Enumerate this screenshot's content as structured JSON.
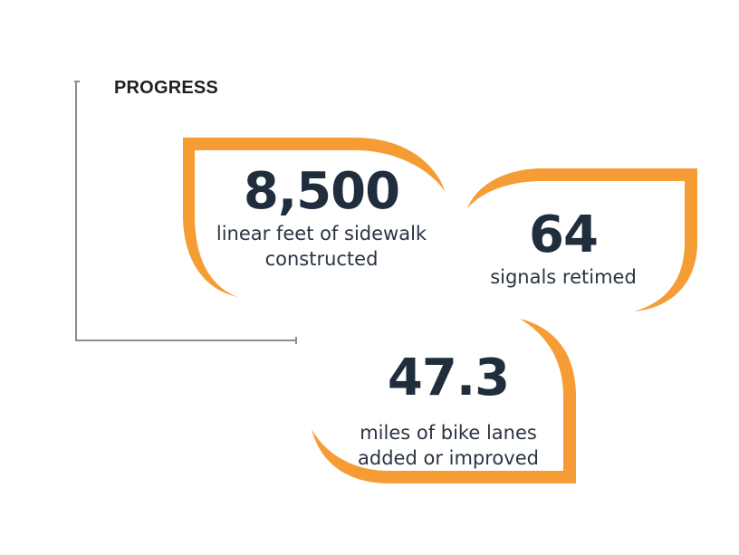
{
  "title": "PROGRESS",
  "colors": {
    "accent": "#f59c34",
    "text_dark": "#1f2d3d",
    "axis": "#8c8c8c"
  },
  "stats": [
    {
      "value": "8,500",
      "desc_line1": "linear feet of sidewalk",
      "desc_line2": "constructed"
    },
    {
      "value": "64",
      "desc_line1": "signals retimed"
    },
    {
      "value": "47.3",
      "desc_line1": "miles of bike lanes",
      "desc_line2": "added or improved"
    }
  ]
}
